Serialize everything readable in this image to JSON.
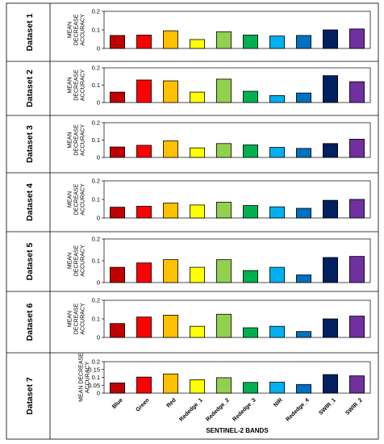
{
  "chart_data": {
    "type": "bar",
    "xlabel": "SENTINEL-2 BANDS",
    "categories": [
      "Blue",
      "Green",
      "Red",
      "Rededge_1",
      "Rededge_2",
      "Rededge_3",
      "NIR",
      "Rededge_4",
      "SWIR_1",
      "SWIR_2"
    ],
    "colors": [
      "#c00000",
      "#ff0000",
      "#ffc000",
      "#ffff00",
      "#92d050",
      "#00b050",
      "#00b0f0",
      "#0070c0",
      "#002060",
      "#7030a0"
    ],
    "panels": [
      {
        "label": "Dataset 1",
        "ylabel": [
          "MEAN",
          "DECREASE",
          "ACCURACY"
        ],
        "ylim": [
          0,
          0.2
        ],
        "ticks": [
          "0",
          "0.1",
          "0.2"
        ],
        "tick_values": [
          0,
          0.1,
          0.2
        ],
        "values": [
          0.07,
          0.072,
          0.095,
          0.048,
          0.09,
          0.072,
          0.067,
          0.07,
          0.1,
          0.105
        ]
      },
      {
        "label": "Dataset 2",
        "ylabel": [
          "MEAN",
          "DECREASE",
          "ACCURACY"
        ],
        "ylim": [
          0,
          0.2
        ],
        "ticks": [
          "0",
          "0.1",
          "0.2"
        ],
        "tick_values": [
          0,
          0.1,
          0.2
        ],
        "values": [
          0.06,
          0.13,
          0.125,
          0.06,
          0.135,
          0.065,
          0.04,
          0.055,
          0.155,
          0.12
        ]
      },
      {
        "label": "Dataset 3",
        "ylabel": [
          "MEAN",
          "DECREASE",
          "ACCURACY"
        ],
        "ylim": [
          0,
          0.2
        ],
        "ticks": [
          "0",
          "0.1",
          "0.2"
        ],
        "tick_values": [
          0,
          0.1,
          0.2
        ],
        "values": [
          0.06,
          0.07,
          0.095,
          0.055,
          0.08,
          0.072,
          0.058,
          0.052,
          0.08,
          0.105
        ]
      },
      {
        "label": "Dataset 4",
        "ylabel": [
          "MEAN",
          "DECREASE",
          "ACCURACY"
        ],
        "ylim": [
          0,
          0.2
        ],
        "ticks": [
          "0",
          "0.1",
          "0.2"
        ],
        "tick_values": [
          0,
          0.1,
          0.2
        ],
        "values": [
          0.058,
          0.063,
          0.08,
          0.07,
          0.085,
          0.067,
          0.06,
          0.052,
          0.095,
          0.1
        ]
      },
      {
        "label": "Dataset 5",
        "ylabel": [
          "MEAN",
          "DECREASE",
          "ACCURACY"
        ],
        "ylim": [
          0,
          0.2
        ],
        "ticks": [
          "0",
          "0.1",
          "0.2"
        ],
        "tick_values": [
          0,
          0.1,
          0.2
        ],
        "values": [
          0.07,
          0.09,
          0.105,
          0.07,
          0.105,
          0.055,
          0.07,
          0.035,
          0.115,
          0.12
        ]
      },
      {
        "label": "Dataset 6",
        "ylabel": [
          "MEAN",
          "DECREASE",
          "ACCURACY"
        ],
        "ylim": [
          0,
          0.2
        ],
        "ticks": [
          "0",
          "0.1",
          "0.2"
        ],
        "tick_values": [
          0,
          0.1,
          0.2
        ],
        "values": [
          0.075,
          0.11,
          0.12,
          0.06,
          0.125,
          0.052,
          0.06,
          0.032,
          0.1,
          0.115
        ]
      },
      {
        "label": "Dataset 7",
        "ylabel": [
          "MEAN DECREASE",
          "ACCURACY"
        ],
        "ylim": [
          0,
          0.2
        ],
        "ticks": [
          "0",
          "0.05",
          "0.1",
          "0.15",
          "0.2"
        ],
        "tick_values": [
          0,
          0.05,
          0.1,
          0.15,
          0.2
        ],
        "values": [
          0.065,
          0.102,
          0.122,
          0.085,
          0.098,
          0.068,
          0.07,
          0.055,
          0.118,
          0.11
        ]
      }
    ]
  }
}
